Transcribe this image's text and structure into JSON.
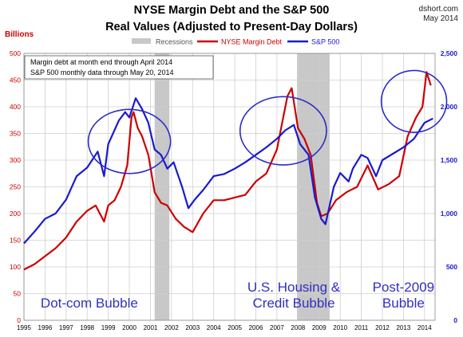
{
  "chart_data": {
    "type": "line",
    "title": "NYSE Margin Debt and the S&P 500",
    "subtitle": "Real Values (Adjusted to Present-Day Dollars)",
    "source": "dshort.com",
    "date": "May 2014",
    "y_left_label": "Billions",
    "x_ticks": [
      "1995",
      "1996",
      "1997",
      "1998",
      "1999",
      "2000",
      "2001",
      "2002",
      "2003",
      "2004",
      "2005",
      "2006",
      "2007",
      "2008",
      "2009",
      "2010",
      "2011",
      "2012",
      "2013",
      "2014"
    ],
    "y_left_ticks": [
      "0",
      "50",
      "100",
      "150",
      "200",
      "250",
      "300",
      "350",
      "400",
      "450",
      "500"
    ],
    "y_right_ticks": [
      "0",
      "500",
      "1,000",
      "1,500",
      "2,000",
      "2,500"
    ],
    "ylim_left": [
      0,
      500
    ],
    "ylim_right": [
      0,
      2500
    ],
    "xlim": [
      1995,
      2014.5
    ],
    "grid": true,
    "legend_position": "top",
    "legend": [
      {
        "name": "Recessions",
        "color": "#c8c8c8"
      },
      {
        "name": "NYSE Margin Debt",
        "color": "#cc0000"
      },
      {
        "name": "S&P 500",
        "color": "#1a1acc"
      }
    ],
    "notes": [
      "Margin debt at month end through April 2014",
      "S&P 500 monthly data through May 20, 2014"
    ],
    "recessions": [
      [
        2001.2,
        2001.9
      ],
      [
        2007.95,
        2009.5
      ]
    ],
    "series": [
      {
        "name": "NYSE Margin Debt",
        "axis": "left",
        "color": "#cc0000",
        "x": [
          1995.0,
          1995.5,
          1996.0,
          1996.5,
          1997.0,
          1997.5,
          1998.0,
          1998.4,
          1998.8,
          1999.0,
          1999.3,
          1999.6,
          1999.9,
          2000.1,
          2000.2,
          2000.4,
          2000.6,
          2000.9,
          2001.2,
          2001.5,
          2001.8,
          2002.2,
          2002.6,
          2003.0,
          2003.5,
          2004.0,
          2004.5,
          2005.0,
          2005.5,
          2006.0,
          2006.5,
          2007.0,
          2007.3,
          2007.5,
          2007.7,
          2008.0,
          2008.3,
          2008.6,
          2008.9,
          2009.1,
          2009.4,
          2009.8,
          2010.3,
          2010.8,
          2011.3,
          2011.8,
          2012.3,
          2012.8,
          2013.2,
          2013.6,
          2013.9,
          2014.1,
          2014.3
        ],
        "y": [
          95,
          105,
          120,
          135,
          155,
          185,
          205,
          215,
          185,
          215,
          225,
          250,
          290,
          380,
          390,
          360,
          345,
          310,
          240,
          220,
          215,
          190,
          175,
          165,
          200,
          225,
          225,
          230,
          235,
          260,
          275,
          320,
          380,
          420,
          435,
          360,
          340,
          310,
          220,
          195,
          200,
          225,
          240,
          250,
          290,
          245,
          255,
          270,
          345,
          380,
          400,
          465,
          440
        ]
      },
      {
        "name": "S&P 500",
        "axis": "right",
        "color": "#1a1acc",
        "x": [
          1995.0,
          1995.5,
          1996.0,
          1996.5,
          1997.0,
          1997.5,
          1998.0,
          1998.5,
          1998.8,
          1999.0,
          1999.5,
          1999.8,
          2000.0,
          2000.3,
          2000.6,
          2000.9,
          2001.2,
          2001.5,
          2001.8,
          2002.1,
          2002.5,
          2002.8,
          2003.1,
          2003.5,
          2004.0,
          2004.5,
          2005.0,
          2005.5,
          2006.0,
          2006.5,
          2007.0,
          2007.4,
          2007.8,
          2008.1,
          2008.5,
          2008.8,
          2009.1,
          2009.3,
          2009.7,
          2010.0,
          2010.4,
          2010.6,
          2011.0,
          2011.3,
          2011.7,
          2012.0,
          2012.5,
          2013.0,
          2013.5,
          2014.0,
          2014.4
        ],
        "y": [
          720,
          830,
          950,
          1000,
          1130,
          1350,
          1430,
          1580,
          1350,
          1650,
          1870,
          1950,
          1900,
          2080,
          1980,
          1850,
          1600,
          1550,
          1420,
          1480,
          1250,
          1050,
          1130,
          1220,
          1350,
          1370,
          1420,
          1480,
          1550,
          1620,
          1700,
          1780,
          1830,
          1650,
          1550,
          1150,
          950,
          900,
          1250,
          1380,
          1300,
          1420,
          1550,
          1520,
          1350,
          1500,
          1560,
          1620,
          1700,
          1850,
          1890
        ]
      }
    ],
    "annotations": [
      {
        "text": [
          "Dot-com Bubble"
        ],
        "x": 1998.1,
        "y": 12
      },
      {
        "text": [
          "U.S. Housing &",
          "Credit Bubble"
        ],
        "x": 2007.8,
        "y": 12
      },
      {
        "text": [
          "Post-2009",
          "Bubble"
        ],
        "x": 2013.0,
        "y": 12
      }
    ]
  }
}
